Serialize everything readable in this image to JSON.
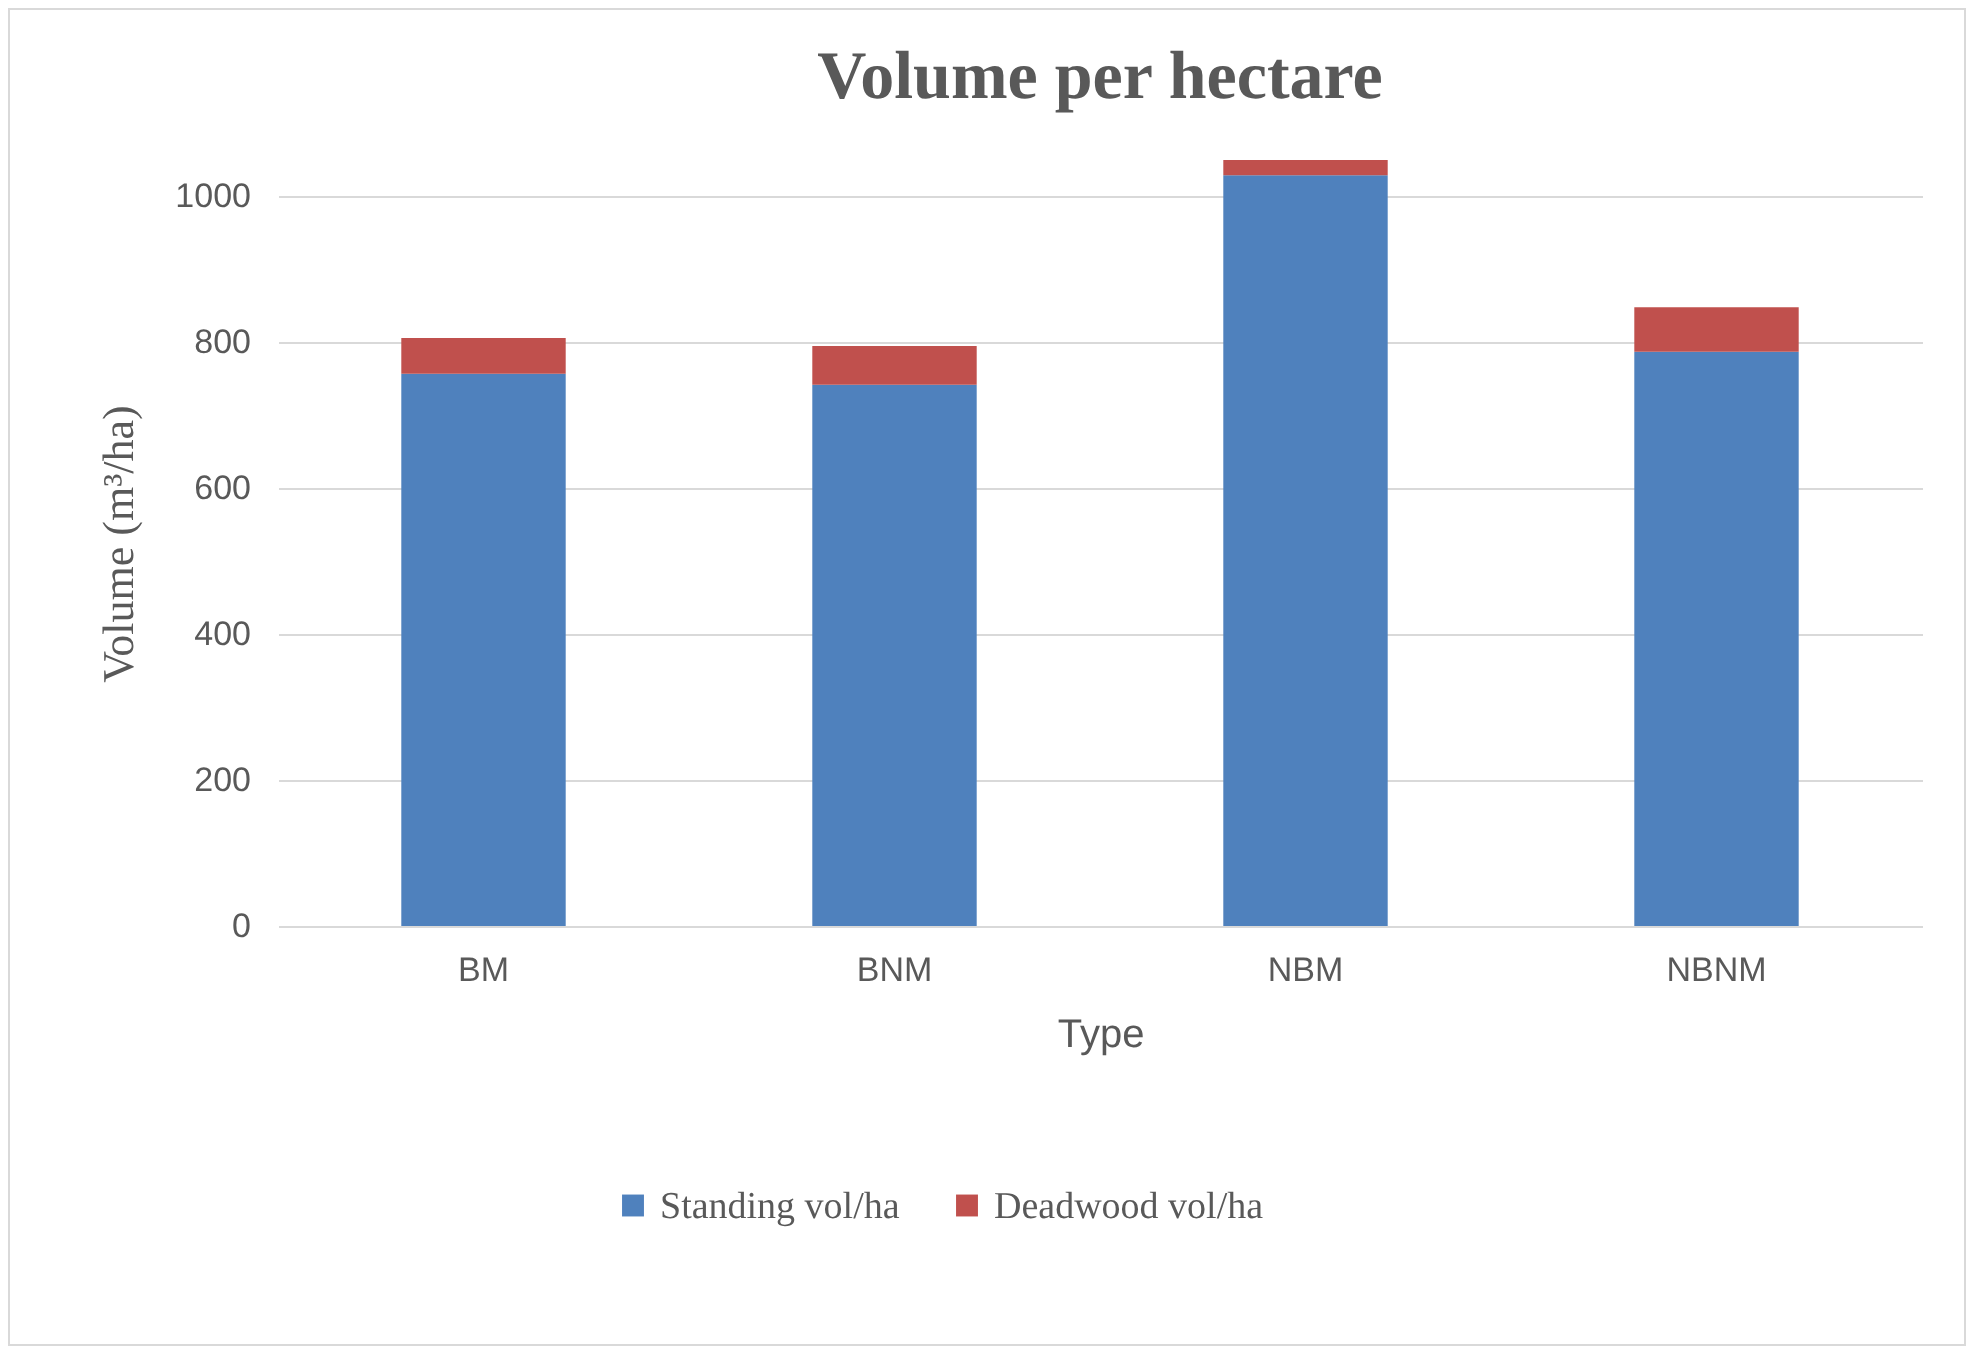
{
  "chart_data": {
    "type": "bar",
    "title": "Volume per hectare",
    "xlabel": "Type",
    "ylabel": "Volume (m³/ha)",
    "categories": [
      "BM",
      "BNM",
      "NBM",
      "NBNM"
    ],
    "series": [
      {
        "name": "Standing vol/ha",
        "color": "#4f81bd",
        "values": [
          757,
          742,
          1029,
          787
        ]
      },
      {
        "name": "Deadwood vol/ha",
        "color": "#c0504d",
        "values": [
          49,
          53,
          21,
          61
        ]
      }
    ],
    "stacked": true,
    "ylim": [
      0,
      1050
    ],
    "yticks": [
      0,
      200,
      400,
      600,
      800,
      {
        "value": 1000,
        "label": "1000"
      }
    ],
    "grid": "y",
    "legend": "bottom"
  }
}
